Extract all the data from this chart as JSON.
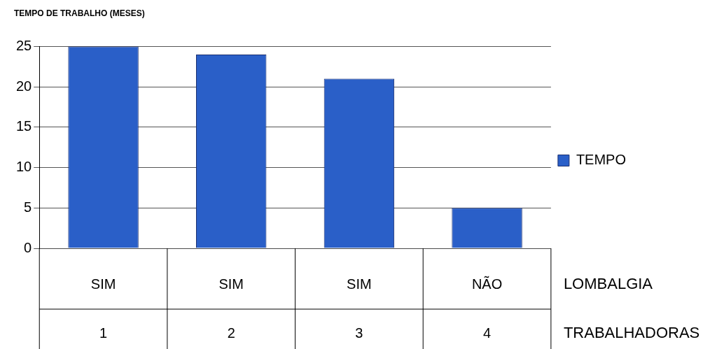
{
  "chart_data": {
    "type": "bar",
    "title": "TEMPO DE TRABALHO (MESES)",
    "categories": [
      "SIM",
      "SIM",
      "SIM",
      "NÃO"
    ],
    "series": [
      {
        "name": "TEMPO",
        "color": "#2a5fc8",
        "values": [
          25,
          24,
          21,
          5
        ]
      }
    ],
    "ylim": [
      0,
      25
    ],
    "yticks": [
      0,
      5,
      10,
      15,
      20,
      25
    ],
    "grid": "y",
    "legend": "right",
    "annotations": [
      "1",
      "2",
      "3",
      "4",
      "LOMBALGIA",
      "TRABALHADORAS"
    ]
  }
}
